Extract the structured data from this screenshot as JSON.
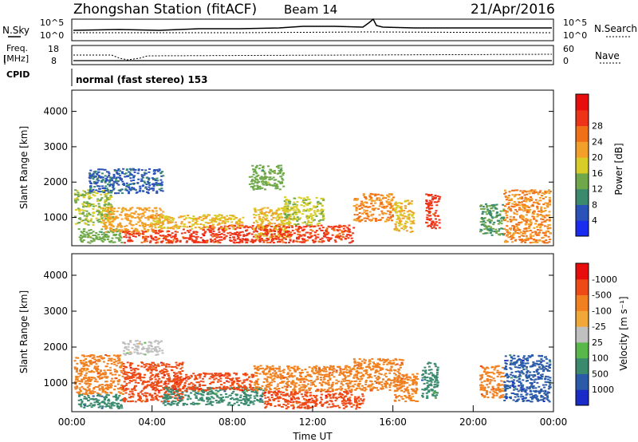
{
  "header": {
    "station": "Zhongshan Station (fitACF)",
    "beam": "Beam 14",
    "date": "21/Apr/2016"
  },
  "top_panels": {
    "nsky_label": "N.Sky",
    "nsearch_label": "N.Search",
    "left_ticks_top": "10^5",
    "left_ticks_bottom": "10^0",
    "right_ticks_top": "10^5",
    "right_ticks_bottom": "10^0",
    "freq_label_1": "Freq.",
    "freq_label_2": "[MHz]",
    "freq_tick_top": "18",
    "freq_tick_bottom": "8",
    "nave_label": "Nave",
    "nave_tick_top": "60",
    "nave_tick_bottom": "0",
    "cpid_label": "CPID",
    "cpid_value": "normal (fast stereo) 153"
  },
  "chart_data": [
    {
      "type": "heatmap",
      "title": "Power",
      "ylabel": "Slant Range [km]",
      "xlabel": "",
      "ylim": [
        200,
        4600
      ],
      "yticks": [
        "1000",
        "2000",
        "3000",
        "4000"
      ],
      "xlim": [
        0,
        24
      ],
      "colorbar_label": "Power [dB]",
      "colorbar_ticks": [
        "4",
        "8",
        "12",
        "16",
        "20",
        "24",
        "28"
      ],
      "colorbar_colors": [
        "#1a2cf0",
        "#2a52b8",
        "#3b8a6e",
        "#6fa84a",
        "#d8cc28",
        "#f2a02a",
        "#f07018",
        "#ee3418",
        "#e80c0c"
      ],
      "regions": [
        {
          "x0": 0.1,
          "x1": 2.0,
          "y0": 800,
          "y1": 1800,
          "v": 14
        },
        {
          "x0": 0.3,
          "x1": 2.5,
          "y0": 300,
          "y1": 700,
          "v": 12
        },
        {
          "x0": 1.5,
          "x1": 4.5,
          "y0": 600,
          "y1": 1300,
          "v": 20
        },
        {
          "x0": 2.5,
          "x1": 5.5,
          "y0": 300,
          "y1": 650,
          "v": 27
        },
        {
          "x0": 5.5,
          "x1": 9.5,
          "y0": 300,
          "y1": 800,
          "v": 28
        },
        {
          "x0": 4.0,
          "x1": 8.5,
          "y0": 700,
          "y1": 1100,
          "v": 18
        },
        {
          "x0": 9.0,
          "x1": 10.8,
          "y0": 400,
          "y1": 1300,
          "v": 18
        },
        {
          "x0": 9.5,
          "x1": 14.0,
          "y0": 300,
          "y1": 800,
          "v": 27
        },
        {
          "x0": 10.5,
          "x1": 12.5,
          "y0": 800,
          "y1": 1600,
          "v": 15
        },
        {
          "x0": 14.0,
          "x1": 16.0,
          "y0": 900,
          "y1": 1700,
          "v": 22
        },
        {
          "x0": 16.0,
          "x1": 17.0,
          "y0": 600,
          "y1": 1500,
          "v": 18
        },
        {
          "x0": 17.6,
          "x1": 18.3,
          "y0": 700,
          "y1": 1700,
          "v": 28
        },
        {
          "x0": 20.3,
          "x1": 21.5,
          "y0": 500,
          "y1": 1400,
          "v": 10
        },
        {
          "x0": 21.5,
          "x1": 23.8,
          "y0": 300,
          "y1": 1800,
          "v": 22
        },
        {
          "x0": 0.8,
          "x1": 4.5,
          "y0": 1700,
          "y1": 2400,
          "v": 5
        },
        {
          "x0": 8.8,
          "x1": 10.5,
          "y0": 1800,
          "y1": 2500,
          "v": 12
        }
      ]
    },
    {
      "type": "heatmap",
      "title": "Velocity",
      "ylabel": "Slant Range [km]",
      "xlabel": "Time UT",
      "ylim": [
        200,
        4600
      ],
      "yticks": [
        "1000",
        "2000",
        "3000",
        "4000"
      ],
      "xlim": [
        0,
        24
      ],
      "xticks": [
        "00:00",
        "04:00",
        "08:00",
        "12:00",
        "16:00",
        "20:00",
        "00:00"
      ],
      "colorbar_label": "Velocity [m s⁻¹]",
      "colorbar_ticks": [
        "1000",
        "500",
        "100",
        "25",
        "-25",
        "-100",
        "-500",
        "-1000"
      ],
      "colorbar_colors": [
        "#1a2cc8",
        "#2a5aa8",
        "#3b8a6e",
        "#58b84a",
        "#c0c0c0",
        "#f0a838",
        "#f08020",
        "#ee4a16",
        "#e80c0c"
      ],
      "regions": [
        {
          "x0": 0.1,
          "x1": 2.5,
          "y0": 700,
          "y1": 1800,
          "v": -300
        },
        {
          "x0": 0.3,
          "x1": 2.5,
          "y0": 300,
          "y1": 700,
          "v": 150
        },
        {
          "x0": 2.5,
          "x1": 5.5,
          "y0": 500,
          "y1": 1600,
          "v": -400
        },
        {
          "x0": 4.5,
          "x1": 9.5,
          "y0": 400,
          "y1": 900,
          "v": 120
        },
        {
          "x0": 5.0,
          "x1": 9.0,
          "y0": 800,
          "y1": 1300,
          "v": -350
        },
        {
          "x0": 9.5,
          "x1": 14.5,
          "y0": 300,
          "y1": 800,
          "v": -500
        },
        {
          "x0": 9.0,
          "x1": 14.0,
          "y0": 800,
          "y1": 1500,
          "v": -300
        },
        {
          "x0": 14.0,
          "x1": 16.5,
          "y0": 800,
          "y1": 1700,
          "v": -300
        },
        {
          "x0": 16.0,
          "x1": 17.2,
          "y0": 500,
          "y1": 1300,
          "v": -200
        },
        {
          "x0": 17.4,
          "x1": 18.2,
          "y0": 600,
          "y1": 1600,
          "v": 150
        },
        {
          "x0": 20.3,
          "x1": 21.5,
          "y0": 600,
          "y1": 1500,
          "v": -300
        },
        {
          "x0": 21.5,
          "x1": 23.8,
          "y0": 500,
          "y1": 1800,
          "v": 300
        },
        {
          "x0": 2.5,
          "x1": 4.5,
          "y0": 1800,
          "y1": 2200,
          "v": 0
        }
      ]
    }
  ]
}
